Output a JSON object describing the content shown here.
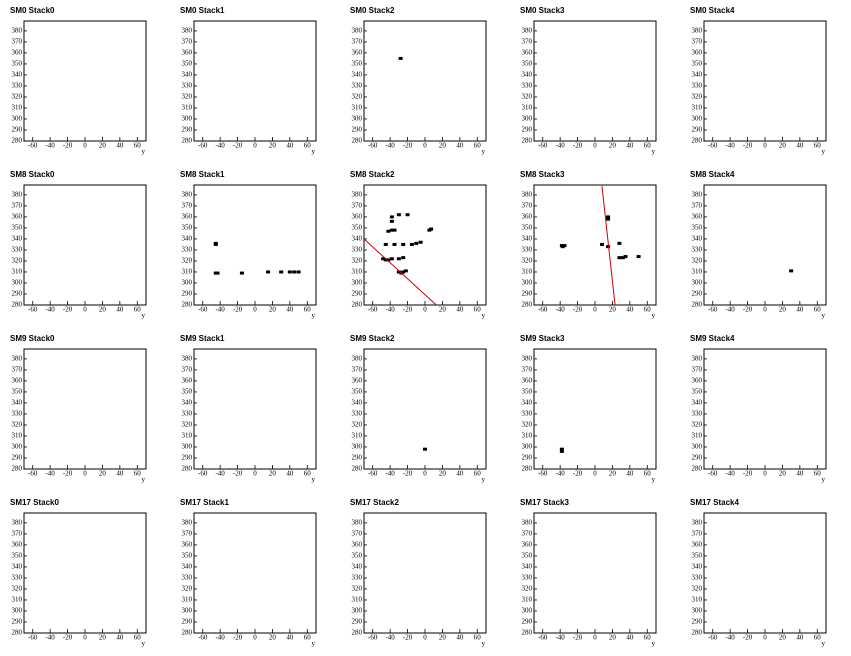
{
  "axes": {
    "xlim": [
      -70,
      70
    ],
    "ylim": [
      280,
      389
    ],
    "xticks": [
      -60,
      -40,
      -20,
      0,
      20,
      40,
      60
    ],
    "yticks": [
      280,
      290,
      300,
      310,
      320,
      330,
      340,
      350,
      360,
      370,
      380
    ],
    "xlabel": "y"
  },
  "chart_data": [
    {
      "type": "scatter",
      "title": "SM0 Stack0",
      "color": "#000000",
      "x": [],
      "y": []
    },
    {
      "type": "scatter",
      "title": "SM0 Stack1",
      "color": "#000000",
      "x": [],
      "y": []
    },
    {
      "type": "scatter",
      "title": "SM0 Stack2",
      "color": "#000000",
      "x": [
        -28
      ],
      "y": [
        355
      ]
    },
    {
      "type": "scatter",
      "title": "SM0 Stack3",
      "color": "#000000",
      "x": [],
      "y": []
    },
    {
      "type": "scatter",
      "title": "SM0 Stack4",
      "color": "#000000",
      "x": [],
      "y": []
    },
    {
      "type": "scatter",
      "title": "SM8 Stack0",
      "color": "#000000",
      "x": [],
      "y": []
    },
    {
      "type": "scatter",
      "title": "SM8 Stack1",
      "color": "#000000",
      "x": [
        -45,
        -45,
        -45,
        -43,
        -15,
        15,
        30,
        40,
        45,
        50
      ],
      "y": [
        336,
        335,
        309,
        309,
        309,
        310,
        310,
        310,
        310,
        310
      ]
    },
    {
      "type": "scatter",
      "title": "SM8 Stack2",
      "color": "#000000",
      "x": [
        -38,
        -30,
        -20,
        -38,
        -42,
        -38,
        -35,
        5,
        7,
        -45,
        -35,
        -25,
        -15,
        -10,
        -5,
        -48,
        -45,
        -42,
        -38,
        -30,
        -25,
        -30,
        -27,
        -22,
        -25
      ],
      "y": [
        360,
        362,
        362,
        356,
        347,
        348,
        348,
        348,
        349,
        335,
        335,
        335,
        335,
        336,
        337,
        322,
        321,
        321,
        322,
        322,
        323,
        310,
        309,
        311,
        310
      ],
      "line": {
        "color": "#cc0000",
        "x": [
          -70,
          13
        ],
        "y": [
          340,
          280
        ]
      }
    },
    {
      "type": "scatter",
      "title": "SM8 Stack3",
      "color": "#000000",
      "x": [
        15,
        15,
        -38,
        -35,
        -37,
        8,
        15,
        28,
        28,
        32,
        35,
        50
      ],
      "y": [
        360,
        358,
        334,
        334,
        333,
        335,
        333,
        336,
        323,
        323,
        324,
        324
      ],
      "line": {
        "color": "#cc0000",
        "x": [
          8,
          23
        ],
        "y": [
          388,
          280
        ]
      }
    },
    {
      "type": "scatter",
      "title": "SM8 Stack4",
      "color": "#000000",
      "x": [
        30
      ],
      "y": [
        311
      ]
    },
    {
      "type": "scatter",
      "title": "SM9 Stack0",
      "color": "#000000",
      "x": [],
      "y": []
    },
    {
      "type": "scatter",
      "title": "SM9 Stack1",
      "color": "#000000",
      "x": [],
      "y": []
    },
    {
      "type": "scatter",
      "title": "SM9 Stack2",
      "color": "#000000",
      "x": [
        0
      ],
      "y": [
        298
      ]
    },
    {
      "type": "scatter",
      "title": "SM9 Stack3",
      "color": "#000000",
      "x": [
        -38,
        -38
      ],
      "y": [
        298,
        296
      ]
    },
    {
      "type": "scatter",
      "title": "SM9 Stack4",
      "color": "#000000",
      "x": [],
      "y": []
    },
    {
      "type": "scatter",
      "title": "SM17 Stack0",
      "color": "#000000",
      "x": [],
      "y": []
    },
    {
      "type": "scatter",
      "title": "SM17 Stack1",
      "color": "#000000",
      "x": [],
      "y": []
    },
    {
      "type": "scatter",
      "title": "SM17 Stack2",
      "color": "#000000",
      "x": [],
      "y": []
    },
    {
      "type": "scatter",
      "title": "SM17 Stack3",
      "color": "#000000",
      "x": [],
      "y": []
    },
    {
      "type": "scatter",
      "title": "SM17 Stack4",
      "color": "#000000",
      "x": [],
      "y": []
    }
  ]
}
